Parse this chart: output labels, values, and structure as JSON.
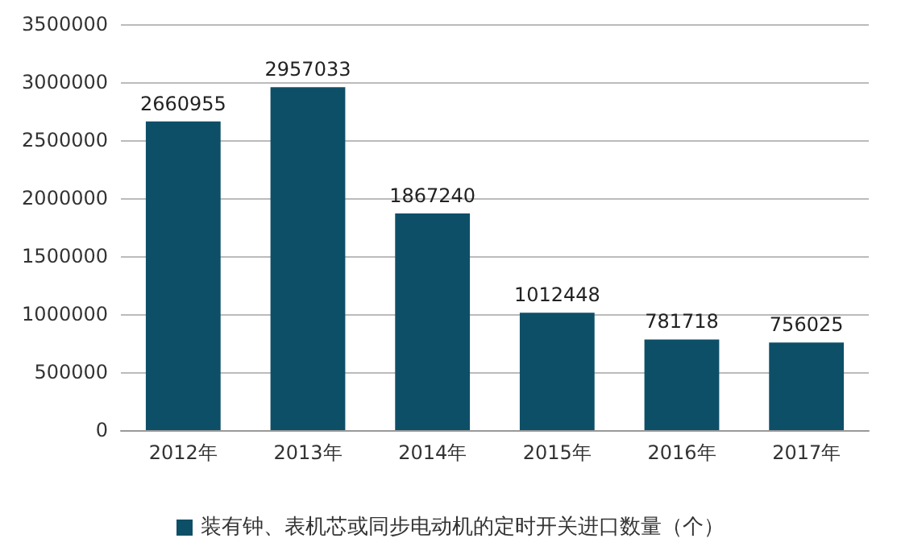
{
  "chart_data": {
    "type": "bar",
    "categories": [
      "2012年",
      "2013年",
      "2014年",
      "2015年",
      "2016年",
      "2017年"
    ],
    "series": [
      {
        "name": "装有钟、表机芯或同步电动机的定时开关进口数量（个）",
        "color": "#0e4f68",
        "values": [
          2660955,
          2957033,
          1867240,
          1012448,
          781718,
          756025
        ]
      }
    ],
    "ylim": [
      0,
      3500000
    ],
    "yticks": [
      0,
      500000,
      1000000,
      1500000,
      2000000,
      2500000,
      3000000,
      3500000
    ],
    "grid": "y",
    "legend": "bottom",
    "data_labels": true
  }
}
